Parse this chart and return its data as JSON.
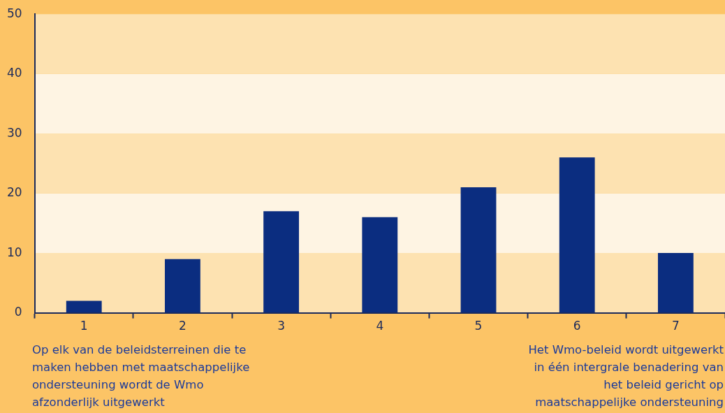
{
  "chart_data": {
    "type": "bar",
    "categories": [
      "1",
      "2",
      "3",
      "4",
      "5",
      "6",
      "7"
    ],
    "values": [
      2,
      9,
      17,
      16,
      21,
      26,
      10
    ],
    "color": "#0b2d80",
    "ylim": [
      0,
      50
    ],
    "yticks": [
      0,
      10,
      20,
      30,
      40,
      50
    ],
    "legend": false,
    "bands": [
      {
        "axis": "y",
        "from": 0,
        "to": 10,
        "color": "#fde2b1"
      },
      {
        "axis": "y",
        "from": 10,
        "to": 20,
        "color": "#fef4e3"
      },
      {
        "axis": "y",
        "from": 20,
        "to": 30,
        "color": "#fde2b1"
      },
      {
        "axis": "y",
        "from": 30,
        "to": 40,
        "color": "#fef4e3"
      },
      {
        "axis": "y",
        "from": 40,
        "to": 50,
        "color": "#fde2b1"
      }
    ],
    "annotations": [
      "Op elk van de beleidsterreinen die te maken hebben met maatschappelijke ondersteuning wordt de Wmo afzonderlijk uitgewerkt",
      "Het Wmo-beleid wordt uitgewerkt in één intergrale benadering van het beleid gericht op maatschappelijke ondersteuning"
    ]
  }
}
